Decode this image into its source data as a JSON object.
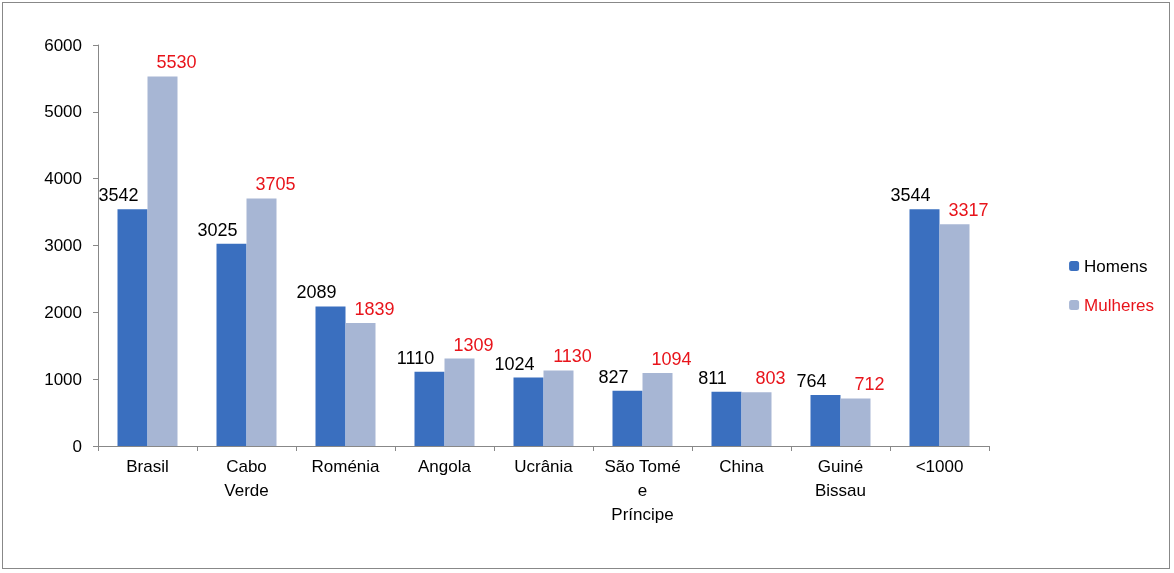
{
  "chart_data": {
    "type": "bar",
    "categories": [
      "Brasil",
      "Cabo Verde",
      "Roménia",
      "Angola",
      "Ucrânia",
      "São Tomé e Príncipe",
      "China",
      "Guiné Bissau",
      "<1000"
    ],
    "series": [
      {
        "name": "Homens",
        "color": "#3a6fbf",
        "values": [
          3542,
          3025,
          2089,
          1110,
          1024,
          827,
          811,
          764,
          3544
        ]
      },
      {
        "name": "Mulheres",
        "color": "#a7b6d4",
        "values": [
          5530,
          3705,
          1839,
          1309,
          1130,
          1094,
          803,
          712,
          3317
        ]
      }
    ],
    "ylim": [
      0,
      6000
    ],
    "yticks": [
      0,
      1000,
      2000,
      3000,
      4000,
      5000,
      6000
    ],
    "grid": false,
    "legend": "right",
    "data_labels": true
  }
}
